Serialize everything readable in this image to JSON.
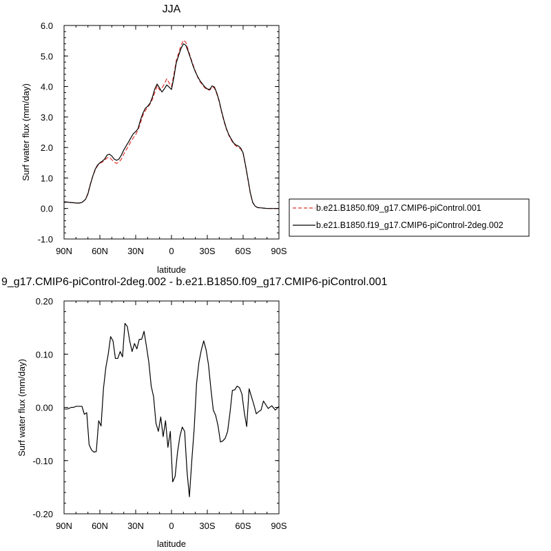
{
  "chart_data": [
    {
      "type": "line",
      "title": "JJA",
      "xlabel": "latitude",
      "ylabel": "Surf water flux (mm/day)",
      "ylim": [
        -1.0,
        6.0
      ],
      "xlim": [
        90,
        -90
      ],
      "xtick_values": [
        90,
        60,
        30,
        0,
        -30,
        -60,
        -90
      ],
      "xtick_labels": [
        "90N",
        "60N",
        "30N",
        "0",
        "30S",
        "60S",
        "90S"
      ],
      "ytick_values": [
        -1.0,
        0.0,
        1.0,
        2.0,
        3.0,
        4.0,
        5.0,
        6.0
      ],
      "ytick_labels": [
        "-1.0",
        "0.0",
        "1.0",
        "2.0",
        "3.0",
        "4.0",
        "5.0",
        "6.0"
      ],
      "legend_position": "outside-right",
      "series": [
        {
          "name": "b.e21.B1850.f09_g17.CMIP6-piControl.001",
          "color": "#e0302a",
          "dash": "dashed",
          "x": [
            90,
            85,
            80,
            77,
            75,
            72,
            70,
            68,
            66,
            64,
            62,
            60,
            58,
            56,
            54,
            52,
            50,
            48,
            46,
            44,
            42,
            40,
            38,
            36,
            34,
            32,
            30,
            28,
            26,
            24,
            22,
            20,
            18,
            16,
            14,
            12,
            10,
            8,
            6,
            4,
            2,
            0,
            -2,
            -4,
            -6,
            -8,
            -10,
            -12,
            -14,
            -16,
            -18,
            -20,
            -22,
            -24,
            -26,
            -28,
            -30,
            -32,
            -34,
            -36,
            -38,
            -40,
            -42,
            -44,
            -46,
            -48,
            -50,
            -52,
            -54,
            -56,
            -58,
            -60,
            -62,
            -64,
            -66,
            -68,
            -70,
            -72,
            -75,
            -80,
            -85,
            -90
          ],
          "y": [
            0.22,
            0.2,
            0.18,
            0.18,
            0.2,
            0.3,
            0.5,
            0.8,
            1.05,
            1.25,
            1.4,
            1.48,
            1.52,
            1.58,
            1.66,
            1.68,
            1.6,
            1.52,
            1.48,
            1.52,
            1.62,
            1.78,
            1.92,
            2.05,
            2.2,
            2.32,
            2.42,
            2.58,
            2.8,
            3.05,
            3.2,
            3.32,
            3.42,
            3.58,
            3.8,
            4.02,
            3.88,
            3.95,
            4.08,
            4.25,
            4.12,
            4.0,
            4.4,
            4.85,
            5.1,
            5.35,
            5.52,
            5.45,
            5.2,
            4.95,
            4.72,
            4.5,
            4.3,
            4.15,
            4.05,
            3.95,
            3.9,
            3.88,
            3.98,
            3.95,
            3.75,
            3.5,
            3.15,
            2.85,
            2.6,
            2.4,
            2.25,
            2.12,
            2.05,
            2.0,
            1.95,
            1.8,
            1.4,
            0.95,
            0.5,
            0.2,
            0.08,
            0.03,
            0.02,
            0.0,
            0.0,
            0.0
          ]
        },
        {
          "name": "b.e21.B1850.f19_g17.CMIP6-piControl-2deg.002",
          "color": "#000000",
          "dash": "solid",
          "x": [
            90,
            85,
            80,
            77,
            75,
            72,
            70,
            68,
            66,
            64,
            62,
            60,
            58,
            56,
            54,
            52,
            50,
            48,
            46,
            44,
            42,
            40,
            38,
            36,
            34,
            32,
            30,
            28,
            26,
            24,
            22,
            20,
            18,
            16,
            14,
            12,
            10,
            8,
            6,
            4,
            2,
            0,
            -2,
            -4,
            -6,
            -8,
            -10,
            -12,
            -14,
            -16,
            -18,
            -20,
            -22,
            -24,
            -26,
            -28,
            -30,
            -32,
            -34,
            -36,
            -38,
            -40,
            -42,
            -44,
            -46,
            -48,
            -50,
            -52,
            -54,
            -56,
            -58,
            -60,
            -62,
            -64,
            -66,
            -68,
            -70,
            -72,
            -75,
            -80,
            -85,
            -90
          ],
          "y": [
            0.22,
            0.2,
            0.18,
            0.18,
            0.2,
            0.3,
            0.48,
            0.78,
            1.05,
            1.28,
            1.42,
            1.5,
            1.55,
            1.62,
            1.75,
            1.78,
            1.72,
            1.62,
            1.58,
            1.62,
            1.75,
            1.92,
            2.05,
            2.18,
            2.32,
            2.45,
            2.52,
            2.62,
            2.9,
            3.12,
            3.28,
            3.35,
            3.45,
            3.65,
            3.92,
            4.08,
            3.95,
            3.82,
            3.92,
            4.05,
            3.98,
            3.9,
            4.3,
            4.78,
            5.02,
            5.25,
            5.4,
            5.35,
            5.15,
            4.92,
            4.68,
            4.48,
            4.32,
            4.18,
            4.08,
            3.98,
            3.92,
            3.9,
            4.02,
            3.98,
            3.78,
            3.52,
            3.18,
            2.88,
            2.62,
            2.42,
            2.28,
            2.15,
            2.08,
            2.05,
            1.98,
            1.82,
            1.42,
            0.98,
            0.52,
            0.2,
            0.08,
            0.03,
            0.02,
            0.0,
            0.0,
            0.0
          ]
        }
      ]
    },
    {
      "type": "line",
      "title": "9_g17.CMIP6-piControl-2deg.002 - b.e21.B1850.f09_g17.CMIP6-piControl.001",
      "xlabel": "latitude",
      "ylabel": "Surf water flux (mm/day)",
      "ylim": [
        -0.2,
        0.2
      ],
      "xlim": [
        90,
        -90
      ],
      "xtick_values": [
        90,
        60,
        30,
        0,
        -30,
        -60,
        -90
      ],
      "xtick_labels": [
        "90N",
        "60N",
        "30N",
        "0",
        "30S",
        "60S",
        "90S"
      ],
      "ytick_values": [
        -0.2,
        -0.1,
        0.0,
        0.1,
        0.2
      ],
      "ytick_labels": [
        "-0.20",
        "-0.10",
        "0.00",
        "0.10",
        "0.20"
      ],
      "series": [
        {
          "color": "#000000",
          "dash": "solid",
          "x": [
            90,
            87,
            84,
            82,
            80,
            77,
            75,
            73,
            71,
            69,
            67,
            65,
            63,
            61,
            59,
            57,
            55,
            53,
            51,
            49,
            47,
            45,
            43,
            41,
            39,
            37,
            35,
            33,
            31,
            29,
            27,
            25,
            23,
            21,
            19,
            17,
            15,
            13,
            11,
            9,
            7,
            5,
            3,
            1,
            -1,
            -3,
            -5,
            -7,
            -9,
            -11,
            -13,
            -15,
            -17,
            -19,
            -21,
            -23,
            -25,
            -27,
            -29,
            -31,
            -33,
            -35,
            -37,
            -39,
            -41,
            -43,
            -45,
            -47,
            -49,
            -51,
            -53,
            -55,
            -57,
            -59,
            -61,
            -63,
            -65,
            -67,
            -69,
            -71,
            -73,
            -75,
            -77,
            -79,
            -81,
            -84,
            -87,
            -90
          ],
          "y": [
            -0.003,
            -0.003,
            0.0,
            0.0,
            0.002,
            0.002,
            0.002,
            -0.013,
            -0.01,
            -0.07,
            -0.08,
            -0.084,
            -0.083,
            -0.025,
            -0.035,
            0.035,
            0.075,
            0.1,
            0.133,
            0.125,
            0.092,
            0.092,
            0.105,
            0.095,
            0.158,
            0.152,
            0.125,
            0.105,
            0.12,
            0.11,
            0.128,
            0.128,
            0.143,
            0.115,
            0.085,
            0.04,
            0.02,
            -0.03,
            -0.045,
            -0.018,
            -0.055,
            -0.025,
            -0.075,
            -0.045,
            -0.14,
            -0.13,
            -0.085,
            -0.055,
            -0.037,
            -0.045,
            -0.12,
            -0.168,
            -0.1,
            -0.04,
            0.045,
            0.085,
            0.108,
            0.125,
            0.108,
            0.08,
            0.035,
            -0.005,
            -0.015,
            -0.035,
            -0.065,
            -0.063,
            -0.058,
            -0.045,
            -0.01,
            0.032,
            0.033,
            0.04,
            0.037,
            0.025,
            -0.01,
            -0.036,
            0.035,
            0.02,
            0.005,
            -0.012,
            -0.008,
            -0.005,
            0.012,
            0.005,
            -0.002,
            0.003,
            -0.005,
            0.002
          ]
        }
      ]
    }
  ]
}
